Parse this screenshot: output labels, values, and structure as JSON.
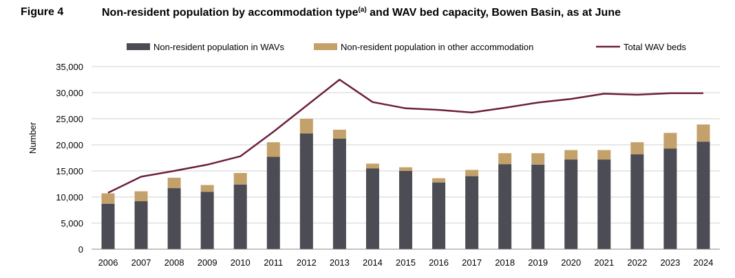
{
  "figure": {
    "label": "Figure 4",
    "title_main": "Non-resident population by accommodation type",
    "title_sup": "(a)",
    "title_rest": " and WAV bed capacity, Bowen Basin, as at June"
  },
  "colors": {
    "wav": "#4b4c54",
    "other": "#c4a16a",
    "line": "#6b1e3e",
    "grid": "#d0d0d0",
    "axis": "#8a8a8a"
  },
  "chart_data": {
    "type": "bar",
    "stacked": true,
    "categories": [
      "2006",
      "2007",
      "2008",
      "2009",
      "2010",
      "2011",
      "2012",
      "2013",
      "2014",
      "2015",
      "2016",
      "2017",
      "2018",
      "2019",
      "2020",
      "2021",
      "2022",
      "2023",
      "2024"
    ],
    "series": [
      {
        "name": "Non-resident population in WAVs",
        "kind": "bar",
        "values": [
          8700,
          9200,
          11700,
          11000,
          12400,
          17700,
          22200,
          21200,
          15500,
          15000,
          12800,
          14000,
          16300,
          16200,
          17200,
          17200,
          18200,
          19300,
          20600
        ]
      },
      {
        "name": "Non-resident population in other accommodation",
        "kind": "bar",
        "values": [
          2000,
          1900,
          2000,
          1300,
          2200,
          2800,
          2800,
          1700,
          900,
          700,
          800,
          1200,
          2100,
          2200,
          1800,
          1800,
          2300,
          3000,
          3300
        ]
      },
      {
        "name": "Total WAV beds",
        "kind": "line",
        "values": [
          10800,
          13900,
          15000,
          16200,
          17800,
          22500,
          27500,
          32500,
          28200,
          27000,
          26700,
          26200,
          27100,
          28100,
          28800,
          29800,
          29600,
          29900,
          29900
        ]
      }
    ],
    "ylabel": "Number",
    "xlabel": "",
    "ylim": [
      0,
      35000
    ],
    "yticks": [
      "0",
      "5,000",
      "10,000",
      "15,000",
      "20,000",
      "25,000",
      "30,000",
      "35,000"
    ],
    "ytick_values": [
      0,
      5000,
      10000,
      15000,
      20000,
      25000,
      30000,
      35000
    ],
    "legend_position": "top",
    "grid": true
  }
}
